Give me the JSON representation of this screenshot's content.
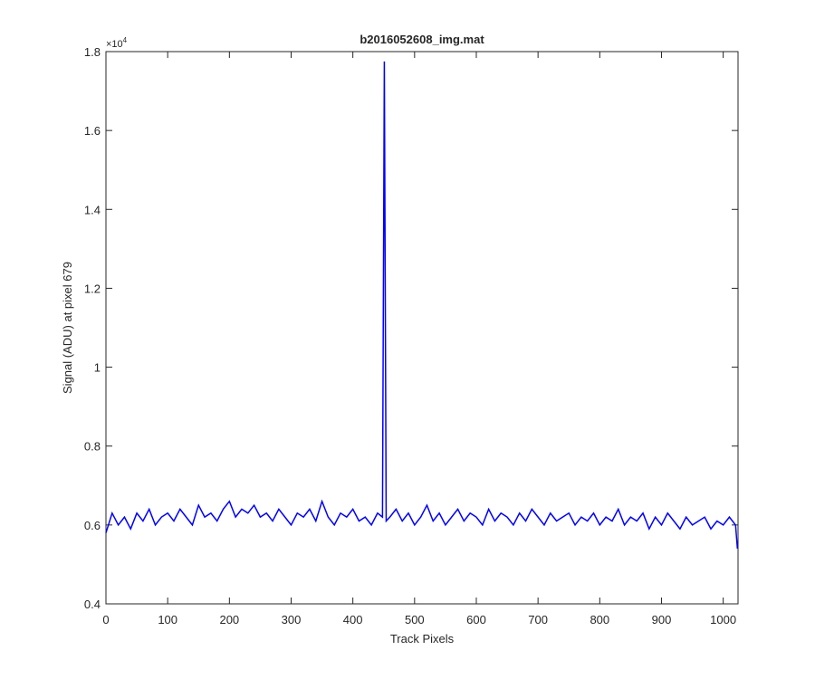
{
  "chart_data": {
    "type": "line",
    "title": "b2016052608_img.mat",
    "xlabel": "Track Pixels",
    "ylabel": "Signal (ADU) at pixel 679",
    "y_exponent_base": "×10",
    "y_exponent_power": "4",
    "x": [
      0,
      10,
      20,
      30,
      40,
      50,
      60,
      70,
      80,
      90,
      100,
      110,
      120,
      130,
      140,
      150,
      160,
      170,
      180,
      190,
      200,
      210,
      220,
      230,
      240,
      250,
      260,
      270,
      280,
      290,
      300,
      310,
      320,
      330,
      340,
      350,
      360,
      370,
      380,
      390,
      400,
      410,
      420,
      430,
      440,
      448,
      451,
      454,
      460,
      470,
      480,
      490,
      500,
      510,
      520,
      530,
      540,
      550,
      560,
      570,
      580,
      590,
      600,
      610,
      620,
      630,
      640,
      650,
      660,
      670,
      680,
      690,
      700,
      710,
      720,
      730,
      740,
      750,
      760,
      770,
      780,
      790,
      800,
      810,
      820,
      830,
      840,
      850,
      860,
      870,
      880,
      890,
      900,
      910,
      920,
      930,
      940,
      950,
      960,
      970,
      980,
      990,
      1000,
      1010,
      1020,
      1023
    ],
    "series": [
      {
        "color": "#0000ff",
        "values": [
          0.58,
          0.63,
          0.6,
          0.62,
          0.59,
          0.63,
          0.61,
          0.64,
          0.6,
          0.62,
          0.63,
          0.61,
          0.64,
          0.62,
          0.6,
          0.65,
          0.62,
          0.63,
          0.61,
          0.64,
          0.66,
          0.62,
          0.64,
          0.63,
          0.65,
          0.62,
          0.63,
          0.61,
          0.64,
          0.62,
          0.6,
          0.63,
          0.62,
          0.64,
          0.61,
          0.66,
          0.62,
          0.6,
          0.63,
          0.62,
          0.64,
          0.61,
          0.62,
          0.6,
          0.63,
          0.62,
          1.775,
          0.61,
          0.62,
          0.64,
          0.61,
          0.63,
          0.6,
          0.62,
          0.65,
          0.61,
          0.63,
          0.6,
          0.62,
          0.64,
          0.61,
          0.63,
          0.62,
          0.6,
          0.64,
          0.61,
          0.63,
          0.62,
          0.6,
          0.63,
          0.61,
          0.64,
          0.62,
          0.6,
          0.63,
          0.61,
          0.62,
          0.63,
          0.6,
          0.62,
          0.61,
          0.63,
          0.6,
          0.62,
          0.61,
          0.64,
          0.6,
          0.62,
          0.61,
          0.63,
          0.59,
          0.62,
          0.6,
          0.63,
          0.61,
          0.59,
          0.62,
          0.6,
          0.61,
          0.62,
          0.59,
          0.61,
          0.6,
          0.62,
          0.6,
          0.54
        ]
      }
    ],
    "xlim": [
      0,
      1024
    ],
    "ylim": [
      0.4,
      1.8
    ],
    "xticks": [
      0,
      100,
      200,
      300,
      400,
      500,
      600,
      700,
      800,
      900,
      1000
    ],
    "yticks": [
      0.4,
      0.6,
      0.8,
      1,
      1.2,
      1.4,
      1.6,
      1.8
    ],
    "grid": false
  }
}
